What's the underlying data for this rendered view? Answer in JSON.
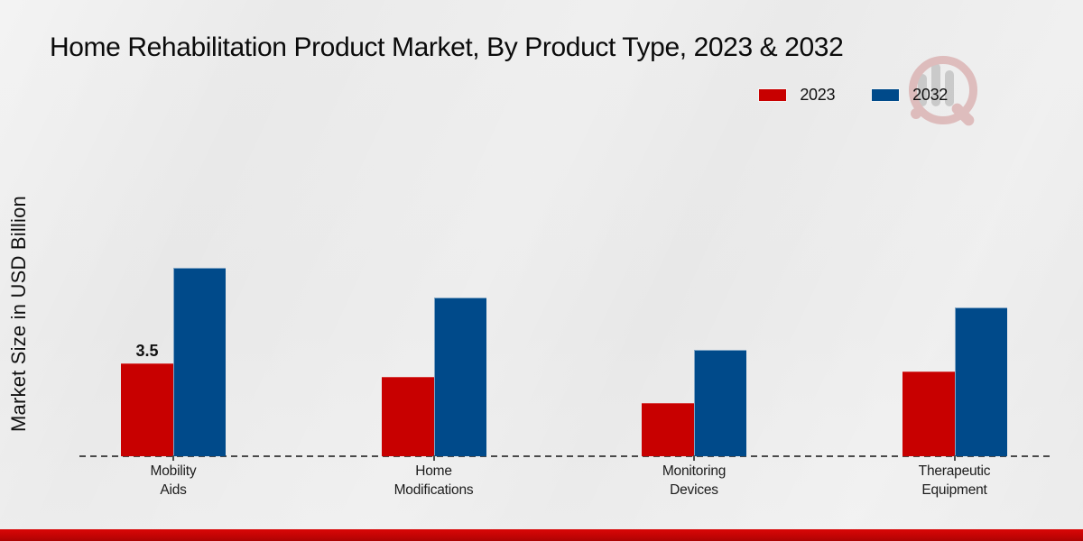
{
  "chart_data": {
    "type": "bar",
    "title": "Home Rehabilitation Product Market, By Product Type, 2023 & 2032",
    "ylabel": "Market Size in USD Billion",
    "xlabel": "",
    "categories": [
      "Mobility Aids",
      "Home Modifications",
      "Monitoring Devices",
      "Therapeutic Equipment"
    ],
    "series": [
      {
        "name": "2023",
        "color": "#c80000",
        "values": [
          3.5,
          3.0,
          2.0,
          3.2
        ],
        "data_labels": [
          "3.5",
          "",
          "",
          ""
        ]
      },
      {
        "name": "2032",
        "color": "#004a8a",
        "values": [
          7.1,
          6.0,
          4.0,
          5.6
        ],
        "data_labels": [
          "",
          "",
          "",
          ""
        ]
      }
    ],
    "ylim": [
      0,
      7.5
    ],
    "grid": false,
    "legend_position": "top-right",
    "x_axis_style": "dashed",
    "y_axis_ticks_visible": false
  },
  "watermark": {
    "name": "magnifier-chart-logo"
  },
  "footer": {
    "color": "#c40404"
  }
}
